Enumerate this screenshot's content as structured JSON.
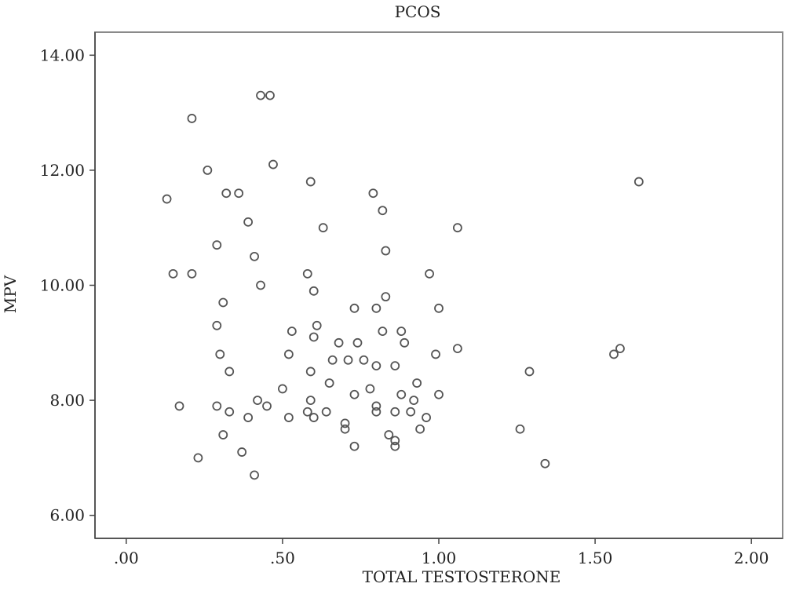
{
  "chart_data": {
    "type": "scatter",
    "title": "PCOS",
    "xlabel": "TOTAL TESTOSTERONE",
    "ylabel": "MPV",
    "xlim": [
      -0.1,
      2.1
    ],
    "ylim": [
      5.6,
      14.4
    ],
    "x_ticks": [
      0,
      0.5,
      1.0,
      1.5,
      2.0
    ],
    "x_tick_labels": [
      ".00",
      ".50",
      "1.00",
      "1.50",
      "2.00"
    ],
    "y_ticks": [
      6,
      8,
      10,
      12,
      14
    ],
    "y_tick_labels": [
      "6.00",
      "8.00",
      "10.00",
      "12.00",
      "14.00"
    ],
    "grid": false,
    "marker": "open-circle",
    "colors": {
      "marker": "#555555",
      "frame": "#8a8a8a",
      "axis": "#444444"
    },
    "points": [
      {
        "x": 0.13,
        "y": 11.5
      },
      {
        "x": 0.15,
        "y": 10.2
      },
      {
        "x": 0.17,
        "y": 7.9
      },
      {
        "x": 0.21,
        "y": 12.9
      },
      {
        "x": 0.21,
        "y": 10.2
      },
      {
        "x": 0.23,
        "y": 7.0
      },
      {
        "x": 0.26,
        "y": 12.0
      },
      {
        "x": 0.29,
        "y": 10.7
      },
      {
        "x": 0.29,
        "y": 9.3
      },
      {
        "x": 0.29,
        "y": 7.9
      },
      {
        "x": 0.3,
        "y": 8.8
      },
      {
        "x": 0.31,
        "y": 9.7
      },
      {
        "x": 0.31,
        "y": 7.4
      },
      {
        "x": 0.32,
        "y": 11.6
      },
      {
        "x": 0.33,
        "y": 8.5
      },
      {
        "x": 0.33,
        "y": 7.8
      },
      {
        "x": 0.36,
        "y": 11.6
      },
      {
        "x": 0.37,
        "y": 7.1
      },
      {
        "x": 0.39,
        "y": 11.1
      },
      {
        "x": 0.39,
        "y": 7.7
      },
      {
        "x": 0.41,
        "y": 10.5
      },
      {
        "x": 0.41,
        "y": 6.7
      },
      {
        "x": 0.42,
        "y": 8.0
      },
      {
        "x": 0.43,
        "y": 13.3
      },
      {
        "x": 0.43,
        "y": 10.0
      },
      {
        "x": 0.45,
        "y": 7.9
      },
      {
        "x": 0.46,
        "y": 13.3
      },
      {
        "x": 0.47,
        "y": 12.1
      },
      {
        "x": 0.5,
        "y": 8.2
      },
      {
        "x": 0.52,
        "y": 8.8
      },
      {
        "x": 0.52,
        "y": 7.7
      },
      {
        "x": 0.53,
        "y": 9.2
      },
      {
        "x": 0.58,
        "y": 10.2
      },
      {
        "x": 0.58,
        "y": 7.8
      },
      {
        "x": 0.59,
        "y": 11.8
      },
      {
        "x": 0.59,
        "y": 8.5
      },
      {
        "x": 0.59,
        "y": 8.0
      },
      {
        "x": 0.6,
        "y": 9.9
      },
      {
        "x": 0.6,
        "y": 9.1
      },
      {
        "x": 0.6,
        "y": 7.7
      },
      {
        "x": 0.61,
        "y": 9.3
      },
      {
        "x": 0.63,
        "y": 11.0
      },
      {
        "x": 0.64,
        "y": 7.8
      },
      {
        "x": 0.65,
        "y": 8.3
      },
      {
        "x": 0.66,
        "y": 8.7
      },
      {
        "x": 0.68,
        "y": 9.0
      },
      {
        "x": 0.7,
        "y": 7.6
      },
      {
        "x": 0.7,
        "y": 7.5
      },
      {
        "x": 0.71,
        "y": 8.7
      },
      {
        "x": 0.73,
        "y": 9.6
      },
      {
        "x": 0.73,
        "y": 8.1
      },
      {
        "x": 0.73,
        "y": 7.2
      },
      {
        "x": 0.74,
        "y": 9.0
      },
      {
        "x": 0.76,
        "y": 8.7
      },
      {
        "x": 0.78,
        "y": 8.2
      },
      {
        "x": 0.79,
        "y": 11.6
      },
      {
        "x": 0.8,
        "y": 9.6
      },
      {
        "x": 0.8,
        "y": 8.6
      },
      {
        "x": 0.8,
        "y": 7.9
      },
      {
        "x": 0.8,
        "y": 7.8
      },
      {
        "x": 0.82,
        "y": 11.3
      },
      {
        "x": 0.82,
        "y": 9.2
      },
      {
        "x": 0.83,
        "y": 10.6
      },
      {
        "x": 0.83,
        "y": 9.8
      },
      {
        "x": 0.84,
        "y": 7.4
      },
      {
        "x": 0.86,
        "y": 8.6
      },
      {
        "x": 0.86,
        "y": 7.8
      },
      {
        "x": 0.86,
        "y": 7.3
      },
      {
        "x": 0.86,
        "y": 7.2
      },
      {
        "x": 0.88,
        "y": 9.2
      },
      {
        "x": 0.88,
        "y": 8.1
      },
      {
        "x": 0.89,
        "y": 9.0
      },
      {
        "x": 0.91,
        "y": 7.8
      },
      {
        "x": 0.92,
        "y": 8.0
      },
      {
        "x": 0.93,
        "y": 8.3
      },
      {
        "x": 0.94,
        "y": 7.5
      },
      {
        "x": 0.96,
        "y": 7.7
      },
      {
        "x": 0.97,
        "y": 10.2
      },
      {
        "x": 0.99,
        "y": 8.8
      },
      {
        "x": 1.0,
        "y": 9.6
      },
      {
        "x": 1.0,
        "y": 8.1
      },
      {
        "x": 1.06,
        "y": 11.0
      },
      {
        "x": 1.06,
        "y": 8.9
      },
      {
        "x": 1.26,
        "y": 7.5
      },
      {
        "x": 1.29,
        "y": 8.5
      },
      {
        "x": 1.34,
        "y": 6.9
      },
      {
        "x": 1.56,
        "y": 8.8
      },
      {
        "x": 1.58,
        "y": 8.9
      },
      {
        "x": 1.64,
        "y": 11.8
      }
    ]
  }
}
